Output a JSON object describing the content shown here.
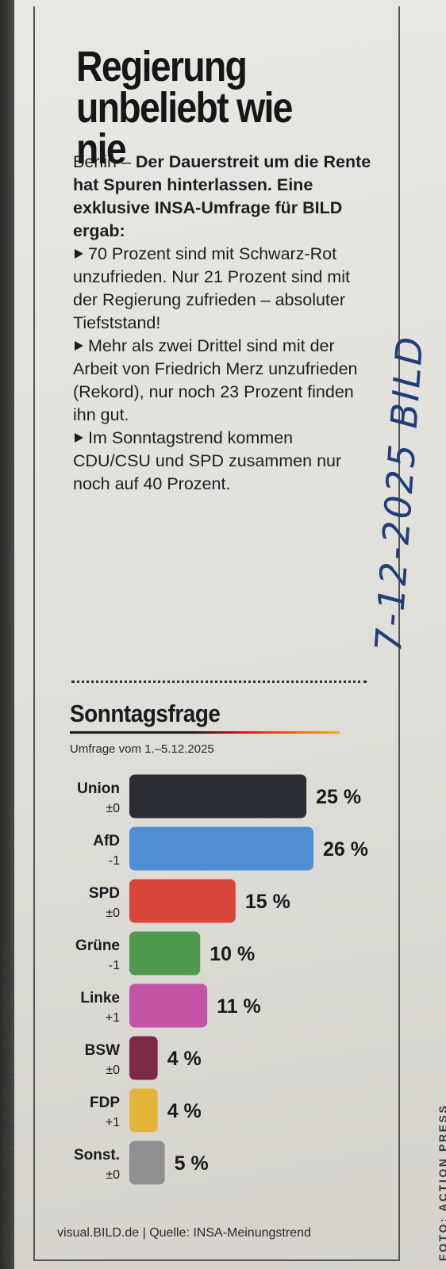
{
  "article": {
    "headline_line1": "Regierung",
    "headline_line2": "unbeliebt wie nie",
    "lead_city": "Berlin –",
    "lead_intro": "Der Dauerstreit um die Rente hat Spuren hinterlassen. Eine exklusive INSA-Umfrage für BILD ergab:",
    "bullet1": "70 Prozent sind mit Schwarz-Rot unzufrieden. Nur 21 Prozent sind mit der Regierung zufrieden – absoluter Tiefststand!",
    "bullet2": "Mehr als zwei Drittel sind mit der Arbeit von Friedrich Merz unzufrieden (Rekord), nur noch 23 Prozent finden ihn gut.",
    "bullet3": "Im Sonntagstrend kommen CDU/CSU und SPD zusammen nur noch auf 40 Prozent."
  },
  "handwritten_note": "7-12-2025 BILD",
  "credits": {
    "left": "FOTO: KAY NIETFELD/DPA, KAY NIETFELD/DPA",
    "right": "FOTO: ACTION PRESS"
  },
  "colors": {
    "union": "#2a2d33",
    "afd": "#4f8fd2",
    "spd": "#d8453b",
    "gruene": "#4f9a4e",
    "linke": "#c654a6",
    "bsw": "#7d2a48",
    "fdp": "#e2b43a",
    "sonst": "#8f8f8f"
  },
  "chart_data": {
    "type": "bar",
    "orientation": "horizontal",
    "title": "Sonntagsfrage",
    "subtitle": "Umfrage vom 1.–5.12.2025",
    "categories": [
      "Union",
      "AfD",
      "SPD",
      "Grüne",
      "Linke",
      "BSW",
      "FDP",
      "Sonst."
    ],
    "changes": [
      "±0",
      "-1",
      "±0",
      "-1",
      "+1",
      "±0",
      "+1",
      "±0"
    ],
    "values": [
      25,
      26,
      15,
      10,
      11,
      4,
      4,
      5
    ],
    "value_labels": [
      "25 %",
      "26 %",
      "15 %",
      "10 %",
      "11 %",
      "4 %",
      "4 %",
      "5 %"
    ],
    "unit": "%",
    "xlim": [
      0,
      26
    ],
    "grid": false,
    "source": "visual.BILD.de | Quelle: INSA-Meinungstrend"
  }
}
